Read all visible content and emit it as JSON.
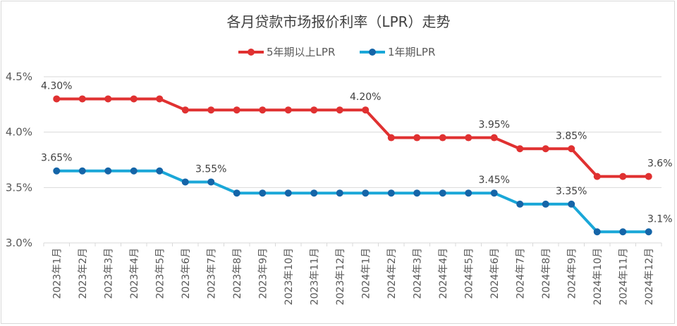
{
  "chart_data": {
    "type": "line",
    "title": "各月贷款市场报价利率（LPR）走势",
    "categories": [
      "2023年1月",
      "2023年2月",
      "2023年3月",
      "2023年4月",
      "2023年5月",
      "2023年6月",
      "2023年7月",
      "2023年8月",
      "2023年9月",
      "2023年10月",
      "2023年11月",
      "2023年12月",
      "2024年1月",
      "2024年2月",
      "2024年3月",
      "2024年4月",
      "2024年5月",
      "2024年6月",
      "2024年7月",
      "2024年8月",
      "2024年9月",
      "2024年10月",
      "2024年11月",
      "2024年12月"
    ],
    "ylim": [
      3.0,
      4.5
    ],
    "yticks": [
      "3.0%",
      "3.5%",
      "4.0%",
      "4.5%"
    ],
    "ytick_values": [
      3.0,
      3.5,
      4.0,
      4.5
    ],
    "grid": true,
    "legend_position": "top",
    "series": [
      {
        "name": "5年期以上LPR",
        "color": "#e03131",
        "values": [
          4.3,
          4.3,
          4.3,
          4.3,
          4.3,
          4.2,
          4.2,
          4.2,
          4.2,
          4.2,
          4.2,
          4.2,
          4.2,
          3.95,
          3.95,
          3.95,
          3.95,
          3.95,
          3.85,
          3.85,
          3.85,
          3.6,
          3.6,
          3.6
        ],
        "labels": [
          {
            "index": 0,
            "text": "4.30%"
          },
          {
            "index": 12,
            "text": "4.20%"
          },
          {
            "index": 17,
            "text": "3.95%"
          },
          {
            "index": 20,
            "text": "3.85%"
          },
          {
            "index": 23,
            "text": "3.6%"
          }
        ]
      },
      {
        "name": "1年期LPR",
        "color": "#1aa7d8",
        "marker_color": "#1565a8",
        "values": [
          3.65,
          3.65,
          3.65,
          3.65,
          3.65,
          3.55,
          3.55,
          3.45,
          3.45,
          3.45,
          3.45,
          3.45,
          3.45,
          3.45,
          3.45,
          3.45,
          3.45,
          3.45,
          3.35,
          3.35,
          3.35,
          3.1,
          3.1,
          3.1
        ],
        "labels": [
          {
            "index": 0,
            "text": "3.65%"
          },
          {
            "index": 6,
            "text": "3.55%"
          },
          {
            "index": 17,
            "text": "3.45%"
          },
          {
            "index": 20,
            "text": "3.35%"
          },
          {
            "index": 23,
            "text": "3.1%"
          }
        ]
      }
    ]
  }
}
